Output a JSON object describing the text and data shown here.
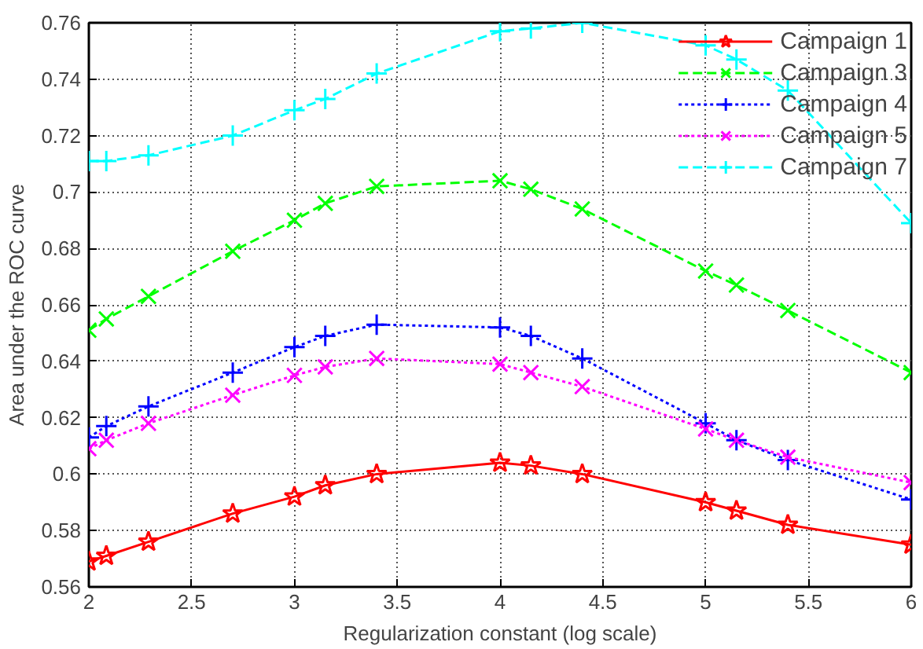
{
  "chart_data": {
    "type": "line",
    "xlabel": "Regularization constant (log scale)",
    "ylabel": "Area under the ROC curve",
    "x": [
      2,
      2.085,
      2.29,
      2.7,
      3,
      3.15,
      3.4,
      4,
      4.15,
      4.4,
      5,
      5.15,
      5.4,
      6
    ],
    "xlim": [
      2,
      6
    ],
    "xticks": [
      2,
      2.5,
      3,
      3.5,
      4,
      4.5,
      5,
      5.5,
      6
    ],
    "ylim": [
      0.56,
      0.76
    ],
    "yticks": [
      0.56,
      0.58,
      0.6,
      0.62,
      0.64,
      0.66,
      0.68,
      0.7,
      0.72,
      0.74,
      0.76
    ],
    "grid": true,
    "legend": "top right",
    "series": [
      {
        "name": "Campaign 1",
        "color": "#ff0000",
        "marker": "star",
        "line_style": "solid",
        "values": [
          0.569,
          0.571,
          0.576,
          0.586,
          0.592,
          0.596,
          0.6,
          0.604,
          0.603,
          0.6,
          0.59,
          0.587,
          0.582,
          0.575
        ]
      },
      {
        "name": "Campaign 3",
        "color": "#00ff00",
        "marker": "x",
        "line_style": "dashed",
        "values": [
          0.651,
          0.655,
          0.663,
          0.679,
          0.69,
          0.696,
          0.702,
          0.704,
          0.701,
          0.694,
          0.672,
          0.667,
          0.658,
          0.636
        ]
      },
      {
        "name": "Campaign 4",
        "color": "#0000ff",
        "marker": "cross",
        "line_style": "dotted",
        "values": [
          0.613,
          0.617,
          0.624,
          0.636,
          0.645,
          0.649,
          0.653,
          0.652,
          0.649,
          0.641,
          0.618,
          0.612,
          0.605,
          0.591
        ]
      },
      {
        "name": "Campaign 5",
        "color": "#ff00ff",
        "marker": "x",
        "line_style": "dotted",
        "values": [
          0.609,
          0.612,
          0.618,
          0.628,
          0.635,
          0.638,
          0.641,
          0.639,
          0.636,
          0.631,
          0.616,
          0.612,
          0.606,
          0.597
        ]
      },
      {
        "name": "Campaign 7",
        "color": "#00ffff",
        "marker": "cross",
        "line_style": "dashed",
        "values": [
          0.711,
          0.711,
          0.713,
          0.72,
          0.729,
          0.733,
          0.742,
          0.757,
          0.758,
          0.76,
          0.752,
          0.747,
          0.736,
          0.689
        ]
      }
    ]
  }
}
